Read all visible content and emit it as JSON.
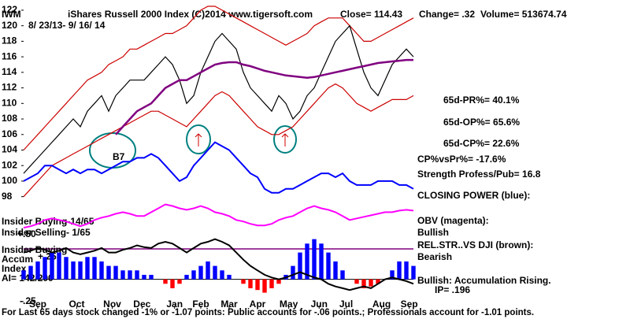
{
  "header": {
    "symbol": "IWM",
    "title": "iShares Russell 2000 Index  (C)2014 www.tigersoft.com",
    "close": "Close= 114.43",
    "change": "Change= .32",
    "volume": "Volume= 513674.74",
    "dates": "8/ 23/13-  9/ 16/ 14"
  },
  "annotations": [
    "65d-PR%= 40.1%",
    "65d-OP%= 65.6%",
    "65d-CP%= 22.6%",
    "CP%vsPr%= -17.6%",
    "Strength Profess/Pub= 16.8",
    "Bullish",
    "Bearish",
    "Bullish: Accumulation Rising.",
    "IP=  .196",
    "Insider Buying-14/65",
    "Insider Selling- 1/65",
    "Insider Buying",
    "Accum",
    "Index",
    "AI= 142/200",
    "B7"
  ],
  "footer": "For Last 65 days stock changed -1% or -1.07 points:  Public accounts for -.06 points.;  Professionals account for -1.01 points.",
  "chart_data": [
    {
      "type": "line",
      "x": [
        0,
        1,
        2,
        3,
        4,
        5,
        6,
        7,
        8,
        9,
        10,
        11,
        12,
        13,
        14,
        15,
        16,
        17,
        18,
        19,
        20,
        21,
        22,
        23,
        24,
        25,
        26,
        27,
        28,
        29,
        30,
        31,
        32,
        33,
        34,
        35,
        36,
        37,
        38,
        39,
        40,
        41,
        42,
        43,
        44,
        45,
        46,
        47,
        48,
        49,
        50,
        51,
        52,
        53,
        54,
        55
      ],
      "xlim": [
        0,
        55
      ],
      "ylim": [
        93,
        122.5
      ],
      "yticks": [
        98,
        100,
        102,
        104,
        106,
        108,
        110,
        112,
        114,
        116,
        118,
        120,
        122
      ],
      "series": [
        {
          "color": "#cc0000",
          "values": [
            104,
            105,
            106,
            107,
            108,
            109,
            110,
            111,
            112,
            113,
            113.5,
            114,
            115,
            115.5,
            116,
            117,
            117,
            117.5,
            118,
            118.5,
            119,
            119,
            119.5,
            120,
            121,
            122,
            122.5,
            122.5,
            122,
            121.5,
            121,
            120.5,
            120,
            119.5,
            119,
            118.5,
            118,
            117.5,
            118,
            118.5,
            119,
            120,
            120.5,
            121,
            121,
            121,
            120,
            119,
            118,
            118,
            118.5,
            119,
            119.5,
            120,
            120.5,
            121
          ]
        },
        {
          "color": "#cc0000",
          "values": [
            98,
            99,
            100,
            101,
            102,
            102.5,
            103,
            103.5,
            104,
            104.5,
            105,
            105.5,
            106,
            106.5,
            107,
            107.5,
            108,
            108.5,
            109,
            109,
            108.5,
            108,
            107.5,
            107,
            108,
            109,
            110,
            111,
            111.5,
            111,
            110,
            109,
            108,
            107,
            106.5,
            106,
            106,
            106.5,
            107,
            108,
            109,
            110,
            111,
            112,
            112.5,
            112,
            111,
            110,
            109.5,
            109,
            109.5,
            110,
            110.5,
            110.5,
            110.5,
            111
          ]
        },
        {
          "color": "#000000",
          "values": [
            101,
            102,
            103,
            104,
            105,
            106,
            107,
            108,
            107,
            109,
            110,
            111,
            109,
            111,
            112,
            113,
            113,
            113,
            114,
            115,
            116,
            115,
            113,
            110,
            111,
            114,
            116,
            118,
            119,
            118,
            117,
            114,
            112,
            111,
            110,
            109,
            111,
            110,
            108,
            109,
            111,
            112,
            114,
            116,
            118,
            119,
            120,
            117,
            114,
            112,
            111,
            113,
            115,
            116,
            117,
            116
          ]
        },
        {
          "color": "#800080",
          "values": [
            null,
            null,
            null,
            null,
            null,
            null,
            null,
            null,
            null,
            null,
            null,
            null,
            null,
            106,
            107,
            108,
            109,
            109.5,
            110,
            111,
            112,
            112.5,
            113,
            113,
            113.5,
            114,
            114.5,
            115,
            115.2,
            115.3,
            115.3,
            115,
            114.8,
            114.5,
            114.2,
            114,
            113.8,
            113.6,
            113.5,
            113.4,
            113.3,
            113.4,
            113.6,
            113.8,
            114,
            114.2,
            114.4,
            114.6,
            114.8,
            115,
            115.2,
            115.3,
            115.4,
            115.5,
            115.6,
            115.6
          ]
        },
        {
          "name": "CLOSING POWER (blue):",
          "color": "#0000ff",
          "values": [
            100,
            100.5,
            101,
            102,
            102,
            101.5,
            101,
            101.5,
            101,
            101.5,
            101.5,
            101,
            101.5,
            102,
            102.5,
            102.5,
            103,
            103,
            103.5,
            103,
            102,
            101,
            100,
            100.5,
            102,
            103,
            104,
            105,
            104.5,
            104,
            103,
            102,
            101,
            100.5,
            99,
            98.5,
            98.5,
            99,
            99,
            99.5,
            100,
            100.5,
            101,
            101,
            100.5,
            101,
            100,
            99.5,
            99.5,
            99.5,
            100,
            100,
            100,
            99.5,
            99.5,
            99
          ]
        },
        {
          "name": "OBV (magenta):",
          "color": "#ff00ff",
          "values": [
            94,
            94.2,
            94.5,
            95,
            95.2,
            95,
            94.8,
            94.5,
            94.2,
            94.5,
            95,
            95.3,
            95.5,
            95.8,
            96,
            95.8,
            95.5,
            95.5,
            96,
            96.5,
            97,
            96.8,
            96.5,
            96.3,
            96.5,
            96.8,
            96.5,
            96,
            95.8,
            95.5,
            95,
            94.8,
            94.5,
            94.3,
            94.3,
            94.5,
            95,
            95.3,
            95.5,
            96,
            96.5,
            96.8,
            96.5,
            96.3,
            96,
            95.5,
            95,
            95.2,
            95.4,
            95.6,
            95.8,
            96,
            96,
            96.2,
            96.3,
            96.2
          ]
        }
      ]
    },
    {
      "type": "line",
      "x": [
        0,
        1,
        2,
        3,
        4,
        5,
        6,
        7,
        8,
        9,
        10,
        11,
        12,
        13,
        14,
        15,
        16,
        17,
        18,
        19,
        20,
        21,
        22,
        23,
        24,
        25,
        26,
        27,
        28,
        29,
        30,
        31,
        32,
        33,
        34,
        35,
        36,
        37,
        38,
        39,
        40,
        41,
        42,
        43,
        44,
        45,
        46,
        47,
        48,
        49,
        50,
        51,
        52,
        53,
        54,
        55
      ],
      "xlim": [
        0,
        55
      ],
      "ylim": [
        -0.33,
        0.57
      ],
      "yticks": [
        {
          "value": 0.5,
          "label": "+.50"
        },
        {
          "value": 0.25,
          "label": "+.25"
        },
        {
          "value": -0.25,
          "label": "-.25"
        }
      ],
      "xticks": [
        {
          "value": 2,
          "label": "Sep"
        },
        {
          "value": 7.5,
          "label": "Oct"
        },
        {
          "value": 12.5,
          "label": "Nov"
        },
        {
          "value": 16.7,
          "label": "Dec"
        },
        {
          "value": 21.3,
          "label": "Jan"
        },
        {
          "value": 25,
          "label": "Feb"
        },
        {
          "value": 29,
          "label": "Mar"
        },
        {
          "value": 33,
          "label": "Apr"
        },
        {
          "value": 37.4,
          "label": "May"
        },
        {
          "value": 41.7,
          "label": "Jun"
        },
        {
          "value": 45.5,
          "label": "Jul"
        },
        {
          "value": 50.5,
          "label": "Aug"
        },
        {
          "value": 54.4,
          "label": "Sep"
        }
      ],
      "series": [
        {
          "type": "bar",
          "color": "#0000ff",
          "negative_color": "#ff0000",
          "values": [
            0.1,
            0.15,
            0.2,
            0.25,
            0.3,
            0.3,
            0.25,
            0.2,
            0.2,
            0.25,
            0.25,
            0.2,
            0.15,
            0.15,
            0.1,
            0.1,
            0.1,
            0.05,
            0.05,
            0,
            -0.05,
            -0.1,
            -0.05,
            0.05,
            0.1,
            0.15,
            0.2,
            0.15,
            0.1,
            0.05,
            0,
            -0.05,
            -0.1,
            -0.12,
            -0.15,
            -0.1,
            -0.05,
            0.05,
            0.15,
            0.3,
            0.4,
            0.45,
            0.4,
            0.3,
            0.2,
            0.1,
            0,
            -0.05,
            -0.1,
            -0.08,
            -0.05,
            0,
            0.1,
            0.2,
            0.2,
            0.15
          ]
        },
        {
          "type": "line",
          "name": "REL.STR..VS DJI (brown):",
          "color": "#000000",
          "values": [
            0.3,
            0.32,
            0.35,
            0.33,
            0.3,
            0.32,
            0.35,
            0.3,
            0.28,
            0.3,
            0.32,
            0.35,
            0.3,
            0.3,
            0.33,
            0.35,
            0.38,
            0.36,
            0.35,
            0.4,
            0.42,
            0.4,
            0.35,
            0.3,
            0.35,
            0.4,
            0.42,
            0.45,
            0.42,
            0.38,
            0.3,
            0.22,
            0.15,
            0.1,
            0.05,
            0.02,
            0,
            0.02,
            0.05,
            0.08,
            0.05,
            0.02,
            0,
            -0.05,
            -0.08,
            -0.1,
            -0.12,
            -0.1,
            -0.08,
            -0.1,
            -0.05,
            0,
            0.02,
            0,
            -0.02,
            -0.05
          ]
        }
      ]
    }
  ]
}
